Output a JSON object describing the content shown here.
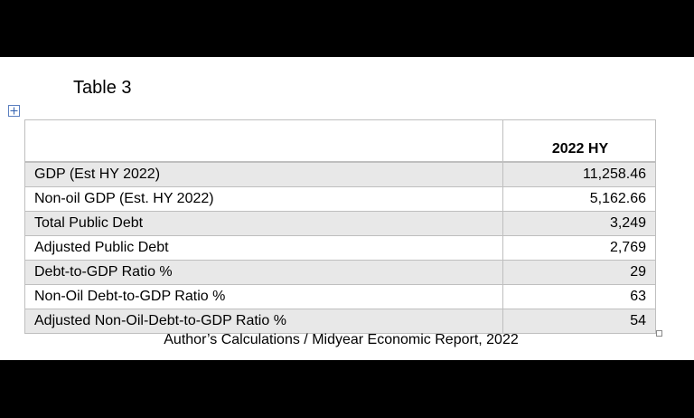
{
  "title": "Table 3",
  "table": {
    "column_header": "2022 HY",
    "rows": [
      [
        "GDP (Est HY 2022)",
        "11,258.46"
      ],
      [
        "Non-oil GDP (Est. HY 2022)",
        "5,162.66"
      ],
      [
        "Total Public Debt",
        "3,249"
      ],
      [
        "Adjusted Public Debt",
        "2,769"
      ],
      [
        "Debt-to-GDP Ratio %",
        "29"
      ],
      [
        "Non-Oil Debt-to-GDP Ratio %",
        "63"
      ],
      [
        "Adjusted Non-Oil-Debt-to-GDP Ratio %",
        "54"
      ]
    ]
  },
  "caption": "Author’s Calculations / Midyear Economic Report, 2022"
}
